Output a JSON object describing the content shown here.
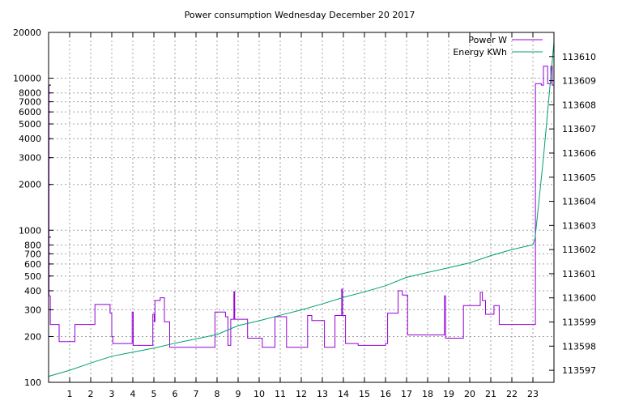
{
  "chart_data": {
    "type": "line",
    "title": "Power consumption Wednesday December 20 2017",
    "xlabel": "",
    "ylabel": "",
    "y2label": "",
    "xlim": [
      0,
      24
    ],
    "ylim": [
      100,
      20000
    ],
    "y_scale": "log",
    "y2lim": [
      113596.5,
      113611
    ],
    "grid": true,
    "legend_position": "top-right",
    "x_ticks": [
      1,
      2,
      3,
      4,
      5,
      6,
      7,
      8,
      9,
      10,
      11,
      12,
      13,
      14,
      15,
      16,
      17,
      18,
      19,
      20,
      21,
      22,
      23
    ],
    "y_ticks": [
      {
        "value": 100,
        "label": "100"
      },
      {
        "value": 200,
        "label": "200"
      },
      {
        "value": 300,
        "label": "300"
      },
      {
        "value": 400,
        "label": "400"
      },
      {
        "value": 500,
        "label": "500"
      },
      {
        "value": 600,
        "label": "600"
      },
      {
        "value": 700,
        "label": "700"
      },
      {
        "value": 800,
        "label": "800"
      },
      {
        "value": 1000,
        "label": "1000"
      },
      {
        "value": 2000,
        "label": "2000"
      },
      {
        "value": 3000,
        "label": "3000"
      },
      {
        "value": 4000,
        "label": "4000"
      },
      {
        "value": 5000,
        "label": "5000"
      },
      {
        "value": 6000,
        "label": "6000"
      },
      {
        "value": 7000,
        "label": "7000"
      },
      {
        "value": 8000,
        "label": "8000"
      },
      {
        "value": 10000,
        "label": "10000"
      },
      {
        "value": 20000,
        "label": "20000"
      }
    ],
    "y2_ticks": [
      113597,
      113598,
      113599,
      113600,
      113601,
      113602,
      113603,
      113604,
      113605,
      113606,
      113607,
      113608,
      113609,
      113610
    ],
    "series": [
      {
        "name": "Power W",
        "axis": "y",
        "color": "#9400d3",
        "step": true,
        "points": [
          [
            0.0,
            9000
          ],
          [
            0.02,
            370
          ],
          [
            0.08,
            240
          ],
          [
            0.5,
            185
          ],
          [
            1.25,
            240
          ],
          [
            2.2,
            325
          ],
          [
            2.92,
            285
          ],
          [
            3.0,
            200
          ],
          [
            3.05,
            180
          ],
          [
            3.97,
            290
          ],
          [
            4.02,
            175
          ],
          [
            4.95,
            280
          ],
          [
            5.02,
            250
          ],
          [
            5.05,
            345
          ],
          [
            5.3,
            360
          ],
          [
            5.5,
            250
          ],
          [
            5.75,
            170
          ],
          [
            7.9,
            290
          ],
          [
            8.4,
            270
          ],
          [
            8.52,
            175
          ],
          [
            8.65,
            260
          ],
          [
            8.8,
            395
          ],
          [
            8.84,
            260
          ],
          [
            9.45,
            195
          ],
          [
            10.15,
            170
          ],
          [
            10.75,
            270
          ],
          [
            11.3,
            170
          ],
          [
            12.3,
            275
          ],
          [
            12.5,
            255
          ],
          [
            13.1,
            170
          ],
          [
            13.6,
            275
          ],
          [
            13.92,
            410
          ],
          [
            13.96,
            275
          ],
          [
            14.1,
            180
          ],
          [
            14.7,
            175
          ],
          [
            16.0,
            180
          ],
          [
            16.1,
            285
          ],
          [
            16.6,
            400
          ],
          [
            16.8,
            375
          ],
          [
            17.05,
            205
          ],
          [
            18.8,
            370
          ],
          [
            18.85,
            195
          ],
          [
            19.7,
            320
          ],
          [
            20.5,
            390
          ],
          [
            20.6,
            345
          ],
          [
            20.75,
            280
          ],
          [
            21.15,
            320
          ],
          [
            21.4,
            240
          ],
          [
            23.02,
            240
          ],
          [
            23.12,
            9200
          ],
          [
            23.4,
            9000
          ],
          [
            23.5,
            12000
          ],
          [
            23.7,
            9200
          ],
          [
            23.85,
            12000
          ],
          [
            23.92,
            9000
          ],
          [
            24.0,
            9000
          ]
        ]
      },
      {
        "name": "Energy KWh",
        "axis": "y2",
        "color": "#009e73",
        "step": false,
        "points": [
          [
            0.0,
            113596.75
          ],
          [
            1.0,
            113597.0
          ],
          [
            2.0,
            113597.3
          ],
          [
            3.0,
            113597.58
          ],
          [
            4.0,
            113597.75
          ],
          [
            5.0,
            113597.92
          ],
          [
            6.0,
            113598.12
          ],
          [
            7.0,
            113598.3
          ],
          [
            8.0,
            113598.48
          ],
          [
            9.0,
            113598.85
          ],
          [
            10.0,
            113599.05
          ],
          [
            11.0,
            113599.28
          ],
          [
            12.0,
            113599.5
          ],
          [
            13.0,
            113599.75
          ],
          [
            14.0,
            113600.02
          ],
          [
            15.0,
            113600.25
          ],
          [
            16.0,
            113600.5
          ],
          [
            17.0,
            113600.85
          ],
          [
            18.0,
            113601.05
          ],
          [
            19.0,
            113601.25
          ],
          [
            20.0,
            113601.45
          ],
          [
            21.0,
            113601.75
          ],
          [
            22.0,
            113602.0
          ],
          [
            23.0,
            113602.2
          ],
          [
            23.1,
            113602.45
          ],
          [
            23.5,
            113605.8
          ],
          [
            24.0,
            113610.6
          ]
        ]
      }
    ]
  }
}
